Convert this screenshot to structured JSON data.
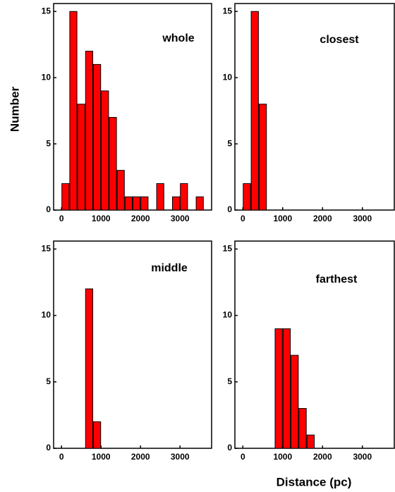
{
  "ylabel": "Number",
  "xlabel": "Distance (pc)",
  "chart_data": [
    {
      "type": "histogram",
      "title": "whole",
      "color": "#ff0000",
      "bins": [
        0,
        200,
        400,
        600,
        800,
        1000,
        1200,
        1400,
        1600,
        1800,
        2000,
        2200,
        2400,
        2600,
        2800,
        3000,
        3200,
        3400,
        3600
      ],
      "values": [
        2,
        15,
        8,
        12,
        11,
        9,
        7,
        3,
        1,
        1,
        1,
        0,
        2,
        0,
        1,
        2,
        0,
        1
      ],
      "xlim": [
        -200,
        3800
      ],
      "xticks": [
        0,
        1000,
        2000,
        3000
      ],
      "ylim": [
        0,
        15.6
      ],
      "yticks": [
        0,
        5,
        10,
        15
      ]
    },
    {
      "type": "histogram",
      "title": "closest",
      "color": "#ff0000",
      "bins": [
        0,
        200,
        400,
        600
      ],
      "values": [
        2,
        15,
        8
      ],
      "xlim": [
        -200,
        3800
      ],
      "xticks": [
        0,
        1000,
        2000,
        3000
      ],
      "ylim": [
        0,
        15.6
      ],
      "yticks": [
        0,
        5,
        10,
        15
      ]
    },
    {
      "type": "histogram",
      "title": "middle",
      "color": "#ff0000",
      "bins": [
        600,
        800,
        1000
      ],
      "values": [
        12,
        2
      ],
      "xlim": [
        -200,
        3800
      ],
      "xticks": [
        0,
        1000,
        2000,
        3000
      ],
      "ylim": [
        0,
        15.6
      ],
      "yticks": [
        0,
        5,
        10,
        15
      ]
    },
    {
      "type": "histogram",
      "title": "farthest",
      "color": "#ff0000",
      "bins": [
        800,
        1000,
        1200,
        1400,
        1600,
        1800
      ],
      "values": [
        9,
        9,
        7,
        3,
        1
      ],
      "xlim": [
        -200,
        3800
      ],
      "xticks": [
        0,
        1000,
        2000,
        3000
      ],
      "ylim": [
        0,
        15.6
      ],
      "yticks": [
        0,
        5,
        10,
        15
      ]
    }
  ]
}
